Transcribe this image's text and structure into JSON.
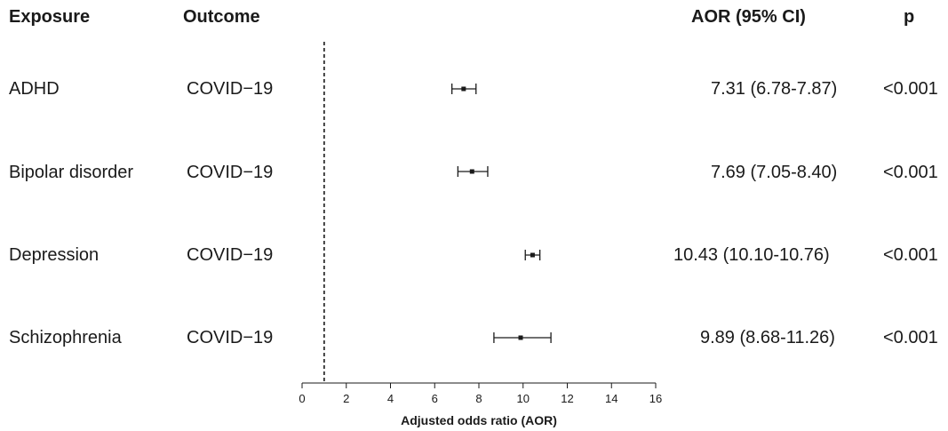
{
  "headers": {
    "exposure": "Exposure",
    "outcome": "Outcome",
    "aor": "AOR (95% CI)",
    "p": "p"
  },
  "rows": [
    {
      "exposure": "ADHD",
      "outcome": "COVID−19",
      "aor_text": "7.31 (6.78-7.87)",
      "p": "<0.001"
    },
    {
      "exposure": "Bipolar disorder",
      "outcome": "COVID−19",
      "aor_text": "7.69 (7.05-8.40)",
      "p": "<0.001"
    },
    {
      "exposure": "Depression",
      "outcome": "COVID−19",
      "aor_text": "10.43 (10.10-10.76)",
      "p": "<0.001"
    },
    {
      "exposure": "Schizophrenia",
      "outcome": "COVID−19",
      "aor_text": "9.89 (8.68-11.26)",
      "p": "<0.001"
    }
  ],
  "chart_data": {
    "type": "forest",
    "categories": [
      "ADHD",
      "Bipolar disorder",
      "Depression",
      "Schizophrenia"
    ],
    "series": [
      {
        "estimate": [
          7.31,
          7.69,
          10.43,
          9.89
        ],
        "lower": [
          6.78,
          7.05,
          10.1,
          8.68
        ],
        "upper": [
          7.87,
          8.4,
          10.76,
          11.26
        ]
      }
    ],
    "reference_line": 1,
    "xlabel": "Adjusted odds ratio (AOR)",
    "xlim": [
      0,
      16
    ],
    "xticks": [
      0,
      2,
      4,
      6,
      8,
      10,
      12,
      14,
      16
    ],
    "xtick_labels": [
      "0",
      "2",
      "4",
      "6",
      "8",
      "10",
      "12",
      "14",
      "16"
    ],
    "grid": false,
    "colors": {
      "ink": "#1a1a1a"
    }
  }
}
